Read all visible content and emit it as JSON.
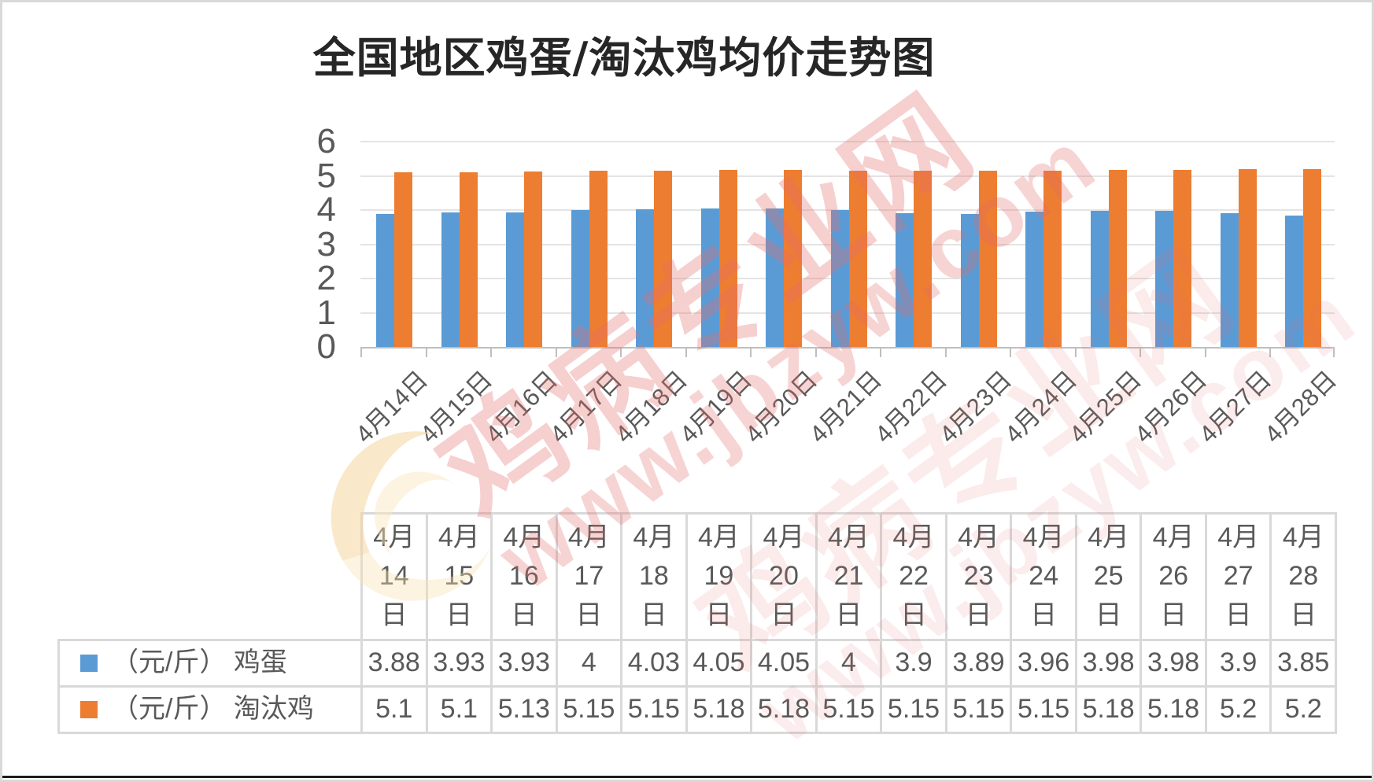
{
  "page": {
    "title": "全国地区鸡蛋/淘汰鸡均价走势图"
  },
  "chart_data": {
    "type": "bar",
    "title": "全国地区鸡蛋/淘汰鸡均价走势图",
    "categories": [
      "4月14日",
      "4月15日",
      "4月16日",
      "4月17日",
      "4月18日",
      "4月19日",
      "4月20日",
      "4月21日",
      "4月22日",
      "4月23日",
      "4月24日",
      "4月25日",
      "4月26日",
      "4月27日",
      "4月28日"
    ],
    "series": [
      {
        "name": "（元/斤） 鸡蛋",
        "color": "#5B9BD5",
        "values": [
          3.88,
          3.93,
          3.93,
          4,
          4.03,
          4.05,
          4.05,
          4,
          3.9,
          3.89,
          3.96,
          3.98,
          3.98,
          3.9,
          3.85
        ]
      },
      {
        "name": "（元/斤） 淘汰鸡",
        "color": "#ED7D31",
        "values": [
          5.1,
          5.1,
          5.13,
          5.15,
          5.15,
          5.18,
          5.18,
          5.15,
          5.15,
          5.15,
          5.15,
          5.18,
          5.18,
          5.2,
          5.2
        ]
      }
    ],
    "ylabel": "",
    "xlabel": "",
    "ylim": [
      0,
      6
    ],
    "yticks": [
      6,
      5,
      4,
      3,
      2,
      1,
      0
    ],
    "grid": true,
    "legend_position": "table-rows-left",
    "colors": {
      "axis_line": "#BFBFBF",
      "gridline": "#E4E4E4",
      "text": "#595959",
      "table_border": "#D9D9D9"
    }
  },
  "watermark": {
    "text1": "鸡病专业网",
    "text2": "www.jbzyw.com"
  }
}
